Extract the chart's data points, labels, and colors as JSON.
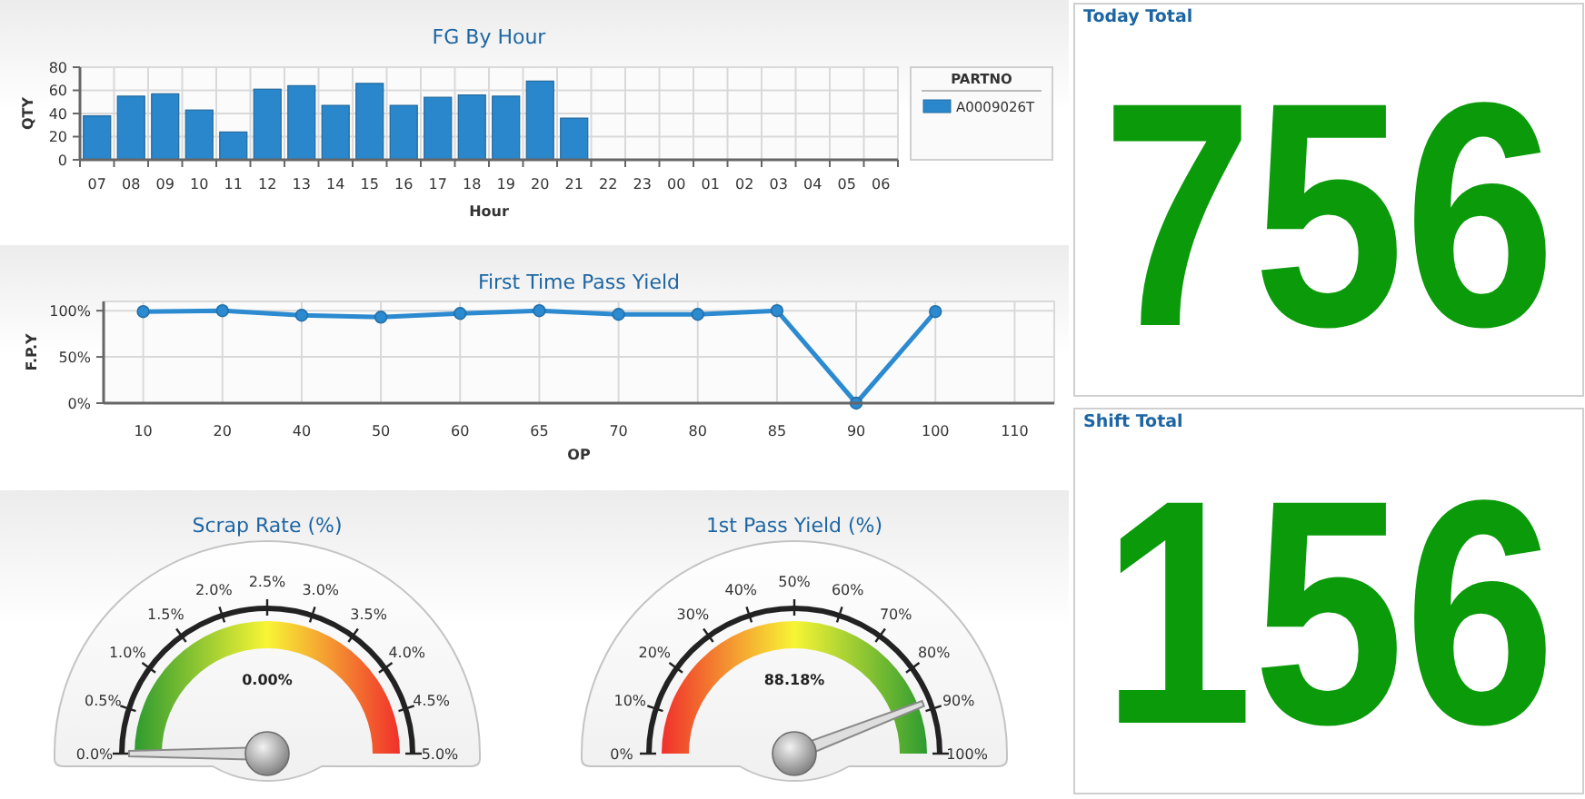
{
  "chart_data": [
    {
      "type": "bar",
      "title": "FG By Hour",
      "xlabel": "Hour",
      "ylabel": "QTY",
      "legend_title": "PARTNO",
      "categories": [
        "07",
        "08",
        "09",
        "10",
        "11",
        "12",
        "13",
        "14",
        "15",
        "16",
        "17",
        "18",
        "19",
        "20",
        "21",
        "22",
        "23",
        "00",
        "01",
        "02",
        "03",
        "04",
        "05",
        "06"
      ],
      "series": [
        {
          "name": "A0009026T",
          "color": "#2a87cb",
          "values": [
            38,
            55,
            57,
            43,
            24,
            61,
            64,
            47,
            66,
            47,
            54,
            56,
            55,
            68,
            36,
            null,
            null,
            null,
            null,
            null,
            null,
            null,
            null,
            null
          ]
        }
      ],
      "ylim": [
        0,
        80
      ],
      "yticks": [
        0,
        20,
        40,
        60,
        80
      ],
      "grid": true,
      "legend": "right"
    },
    {
      "type": "other",
      "title": "Today Total",
      "annotations": [
        "756"
      ],
      "color": "#0a9a0a"
    },
    {
      "type": "line",
      "title": "First Time Pass Yield",
      "xlabel": "OP",
      "ylabel": "F.P.Y",
      "categories": [
        "10",
        "20",
        "40",
        "50",
        "60",
        "65",
        "70",
        "80",
        "85",
        "90",
        "100",
        "110"
      ],
      "series": [
        {
          "color": "#2b8ad0",
          "values": [
            99,
            100,
            95,
            93,
            97,
            100,
            96,
            96,
            100,
            0,
            99,
            null
          ]
        }
      ],
      "ylim": [
        0,
        110
      ],
      "yticks": [
        {
          "value": 0,
          "label": "0%"
        },
        {
          "value": 50,
          "label": "50%"
        },
        {
          "value": 100,
          "label": "100%"
        }
      ],
      "grid": true,
      "marker": "circle"
    },
    {
      "type": "other",
      "title": "Shift Total",
      "annotations": [
        "156"
      ],
      "color": "#0a9a0a"
    },
    {
      "type": "other",
      "title": "Scrap Rate (%)",
      "values": [
        0
      ],
      "value_labels": [
        "0.00%"
      ],
      "annotations": [
        "0.0%",
        "0.5%",
        "1.0%",
        "1.5%",
        "2.0%",
        "2.5%",
        "3.0%",
        "3.5%",
        "4.0%",
        "4.5%",
        "5.0%"
      ]
    },
    {
      "type": "other",
      "title": "1st Pass Yield (%)",
      "values": [
        88.18
      ],
      "value_labels": [
        "88.18%"
      ],
      "annotations": [
        "0%",
        "10%",
        "20%",
        "30%",
        "40%",
        "50%",
        "60%",
        "70%",
        "80%",
        "90%",
        "100%"
      ]
    }
  ]
}
